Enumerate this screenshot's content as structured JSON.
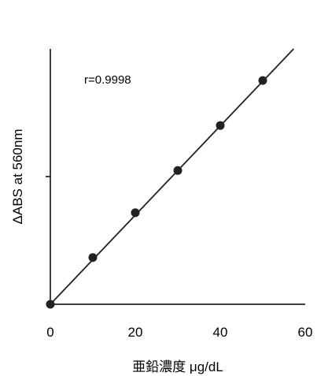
{
  "chart_data": {
    "type": "scatter",
    "ylabel": "ΔABS at 560nm",
    "xlabel": "亜鉛濃度 μg/dL",
    "xlim": [
      0,
      60
    ],
    "ylim": [
      0,
      1
    ],
    "xticks": [
      "0",
      "20",
      "40",
      "60"
    ],
    "annotation": "r=0.9998",
    "grid": false,
    "series": [
      {
        "x": [
          0,
          10,
          20,
          30,
          40,
          50
        ],
        "y": [
          0,
          0.216,
          0.423,
          0.618,
          0.826,
          1.034
        ]
      }
    ],
    "fit_line": {
      "slope": 0.0206,
      "intercept": 0.0
    },
    "colors": {
      "marker": "#222222",
      "line": "#222222",
      "axis": "#000000"
    }
  }
}
